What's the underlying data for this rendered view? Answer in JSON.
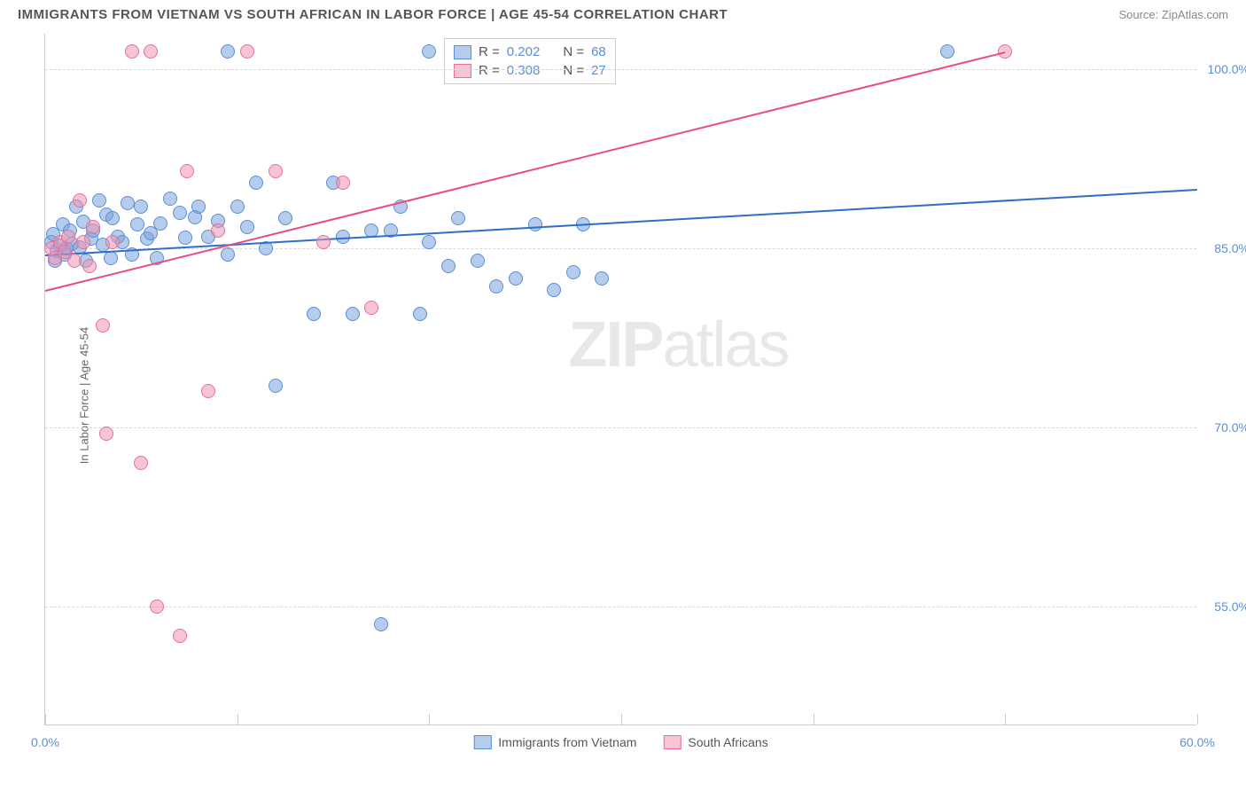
{
  "title": "IMMIGRANTS FROM VIETNAM VS SOUTH AFRICAN IN LABOR FORCE | AGE 45-54 CORRELATION CHART",
  "source": "Source: ZipAtlas.com",
  "yaxis_label": "In Labor Force | Age 45-54",
  "watermark_bold": "ZIP",
  "watermark_thin": "atlas",
  "chart": {
    "type": "scatter",
    "xlim": [
      0,
      60
    ],
    "ylim": [
      45,
      103
    ],
    "xticks": [
      0,
      10,
      20,
      30,
      40,
      50,
      60
    ],
    "xtick_labels": [
      "0.0%",
      "",
      "",
      "",
      "",
      "",
      "60.0%"
    ],
    "yticks": [
      55,
      70,
      85,
      100
    ],
    "ytick_labels": [
      "55.0%",
      "70.0%",
      "85.0%",
      "100.0%"
    ],
    "grid_color": "#d8d8d8",
    "background": "#ffffff",
    "axis_color": "#cccccc",
    "tick_label_color": "#5b8fd6",
    "tick_fontsize": 14,
    "point_radius": 8
  },
  "series": [
    {
      "name": "Immigrants from Vietnam",
      "fill": "rgba(121,163,220,0.55)",
      "stroke": "#5b8fd6",
      "line_color": "#2f6fc9",
      "R": "0.202",
      "N": "68",
      "trend": {
        "x1": 0,
        "y1": 84.5,
        "x2": 60,
        "y2": 90.0
      },
      "points": [
        [
          0.3,
          85.5
        ],
        [
          0.4,
          86.2
        ],
        [
          0.5,
          84.0
        ],
        [
          0.6,
          84.8
        ],
        [
          0.8,
          85.2
        ],
        [
          0.9,
          87.0
        ],
        [
          1.0,
          84.5
        ],
        [
          1.1,
          85.0
        ],
        [
          1.3,
          86.5
        ],
        [
          1.4,
          85.4
        ],
        [
          1.6,
          88.5
        ],
        [
          1.8,
          85.1
        ],
        [
          2.0,
          87.2
        ],
        [
          2.1,
          84.0
        ],
        [
          2.4,
          85.8
        ],
        [
          2.5,
          86.5
        ],
        [
          2.8,
          89.0
        ],
        [
          3.0,
          85.3
        ],
        [
          3.2,
          87.8
        ],
        [
          3.4,
          84.2
        ],
        [
          3.5,
          87.5
        ],
        [
          3.8,
          86.0
        ],
        [
          4.0,
          85.5
        ],
        [
          4.3,
          88.8
        ],
        [
          4.5,
          84.5
        ],
        [
          4.8,
          87.0
        ],
        [
          5.0,
          88.5
        ],
        [
          5.3,
          85.8
        ],
        [
          5.5,
          86.3
        ],
        [
          5.8,
          84.2
        ],
        [
          6.0,
          87.1
        ],
        [
          6.5,
          89.2
        ],
        [
          7.0,
          88.0
        ],
        [
          7.3,
          85.9
        ],
        [
          7.8,
          87.6
        ],
        [
          8.0,
          88.5
        ],
        [
          8.5,
          86.0
        ],
        [
          9.0,
          87.3
        ],
        [
          9.5,
          84.5
        ],
        [
          9.5,
          101.5
        ],
        [
          10.0,
          88.5
        ],
        [
          10.5,
          86.8
        ],
        [
          11.0,
          90.5
        ],
        [
          11.5,
          85.0
        ],
        [
          12.0,
          73.5
        ],
        [
          12.5,
          87.5
        ],
        [
          14.0,
          79.5
        ],
        [
          15.0,
          90.5
        ],
        [
          15.5,
          86.0
        ],
        [
          16.0,
          79.5
        ],
        [
          17.0,
          86.5
        ],
        [
          17.5,
          53.5
        ],
        [
          18.0,
          86.5
        ],
        [
          18.5,
          88.5
        ],
        [
          19.5,
          79.5
        ],
        [
          20.0,
          85.5
        ],
        [
          20.0,
          101.5
        ],
        [
          21.0,
          83.5
        ],
        [
          21.5,
          87.5
        ],
        [
          22.5,
          84.0
        ],
        [
          23.5,
          81.8
        ],
        [
          24.5,
          82.5
        ],
        [
          25.5,
          87.0
        ],
        [
          26.5,
          81.5
        ],
        [
          27.5,
          83.0
        ],
        [
          28.0,
          87.0
        ],
        [
          29.0,
          82.5
        ],
        [
          47.0,
          101.5
        ]
      ]
    },
    {
      "name": "South Africans",
      "fill": "rgba(239,148,179,0.55)",
      "stroke": "#e76f9a",
      "line_color": "#e94b84",
      "R": "0.308",
      "N": "27",
      "trend": {
        "x1": 0,
        "y1": 81.5,
        "x2": 50,
        "y2": 101.5
      },
      "points": [
        [
          0.3,
          85.0
        ],
        [
          0.5,
          84.2
        ],
        [
          0.8,
          85.5
        ],
        [
          1.0,
          84.7
        ],
        [
          1.2,
          86.0
        ],
        [
          1.5,
          84.0
        ],
        [
          1.8,
          89.0
        ],
        [
          2.0,
          85.5
        ],
        [
          2.3,
          83.5
        ],
        [
          2.5,
          86.8
        ],
        [
          3.0,
          78.5
        ],
        [
          3.2,
          69.5
        ],
        [
          3.5,
          85.5
        ],
        [
          4.5,
          101.5
        ],
        [
          5.0,
          67.0
        ],
        [
          5.5,
          101.5
        ],
        [
          5.8,
          55.0
        ],
        [
          7.0,
          52.5
        ],
        [
          7.4,
          91.5
        ],
        [
          8.5,
          73.0
        ],
        [
          9.0,
          86.5
        ],
        [
          10.5,
          101.5
        ],
        [
          12.0,
          91.5
        ],
        [
          14.5,
          85.5
        ],
        [
          15.5,
          90.5
        ],
        [
          17.0,
          80.0
        ],
        [
          50.0,
          101.5
        ]
      ]
    }
  ],
  "legend_top": {
    "R_label": "R =",
    "N_label": "N ="
  },
  "legend_bottom": [
    "Immigrants from Vietnam",
    "South Africans"
  ]
}
